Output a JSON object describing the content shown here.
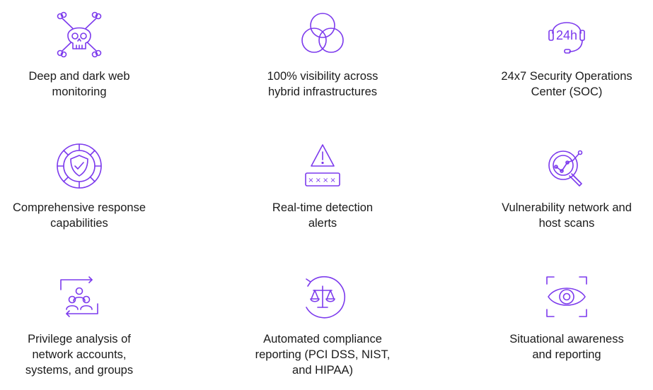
{
  "accent_color": "#7c3aed",
  "features": [
    {
      "icon": "skull-crossbones-icon",
      "label": "Deep and dark web\nmonitoring"
    },
    {
      "icon": "overlapping-circles-icon",
      "label": "100% visibility across\nhybrid infrastructures"
    },
    {
      "icon": "headset-24h-icon",
      "icon_text": "24h",
      "label": "24x7 Security Operations\nCenter (SOC)"
    },
    {
      "icon": "shield-check-icon",
      "label": "Comprehensive response\ncapabilities"
    },
    {
      "icon": "warning-password-icon",
      "icon_text": "××××",
      "label": "Real-time detection\nalerts"
    },
    {
      "icon": "magnifier-network-icon",
      "label": "Vulnerability network and\nhost scans"
    },
    {
      "icon": "users-sync-icon",
      "label": "Privilege analysis of\nnetwork accounts,\nsystems, and groups"
    },
    {
      "icon": "compliance-scale-icon",
      "label": "Automated compliance\nreporting (PCI DSS, NIST,\nand HIPAA)"
    },
    {
      "icon": "eye-scan-icon",
      "label": "Situational awareness\nand reporting"
    }
  ]
}
